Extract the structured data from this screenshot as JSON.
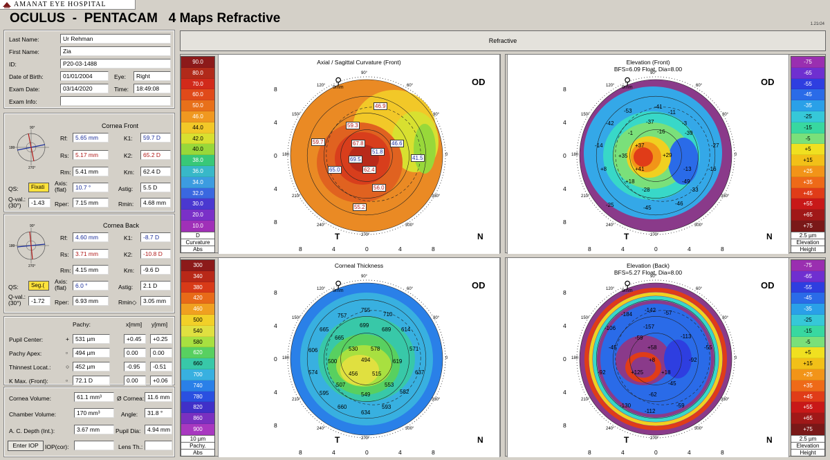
{
  "hospital": "AMANAT EYE HOSPITAL",
  "title": "OCULUS  -  PENTACAM   4 Maps Refractive",
  "version": "1.21r24",
  "header": "Refractive",
  "patient": {
    "last_name_label": "Last Name:",
    "last_name": "Ur Rehman",
    "first_name_label": "First Name:",
    "first_name": "Zia",
    "id_label": "ID:",
    "id": "P20-03-1488",
    "dob_label": "Date of Birth:",
    "dob": "01/01/2004",
    "eye_label": "Eye:",
    "eye": "Right",
    "exam_date_label": "Exam Date:",
    "exam_date": "03/14/2020",
    "time_label": "Time:",
    "time": "18:49:08",
    "exam_info_label": "Exam Info:",
    "exam_info": ""
  },
  "front": {
    "title": "Cornea Front",
    "rf_l": "Rf:",
    "rf": "5.65 mm",
    "k1_l": "K1:",
    "k1": "59.7 D",
    "rs_l": "Rs:",
    "rs": "5.17 mm",
    "k2_l": "K2:",
    "k2": "65.2 D",
    "rm_l": "Rm:",
    "rm": "5.41 mm",
    "km_l": "Km:",
    "km": "62.4 D",
    "qs_l": "QS:",
    "qs": "Fixati",
    "axis_l": "Axis:",
    "axis_l2": "(flat)",
    "axis": "10.7 °",
    "astig_l": "Astig:",
    "astig": "5.5 D",
    "qval_l": "Q-val.:",
    "qval_l2": "(30°)",
    "qval": "-1.43",
    "rper_l": "Rper:",
    "rper": "7.15 mm",
    "rmin_l": "Rmin:",
    "rmin": "4.68 mm"
  },
  "back": {
    "title": "Cornea Back",
    "rf_l": "Rf:",
    "rf": "4.60 mm",
    "k1_l": "K1:",
    "k1": "-8.7 D",
    "rs_l": "Rs:",
    "rs": "3.71 mm",
    "k2_l": "K2:",
    "k2": "-10.8 D",
    "rm_l": "Rm:",
    "rm": "4.15 mm",
    "km_l": "Km:",
    "km": "-9.6 D",
    "qs_l": "QS:",
    "qs": "Seg.(",
    "axis_l": "Axis:",
    "axis_l2": "(flat)",
    "axis": "6.0 °",
    "astig_l": "Astig:",
    "astig": "2.1 D",
    "qval_l": "Q-val.:",
    "qval_l2": "(30°)",
    "qval": "-1.72",
    "rper_l": "Rper:",
    "rper": "6.93 mm",
    "rmin_l": "Rmin◇",
    "rmin": "3.05 mm"
  },
  "pachy": {
    "col_pachy": "Pachy:",
    "col_x": "x[mm]",
    "col_y": "y[mm]",
    "rows": [
      {
        "label": "Pupil Center:",
        "sym": "+",
        "pachy": "531 µm",
        "x": "+0.45",
        "y": "+0.25"
      },
      {
        "label": "Pachy Apex:",
        "sym": "▫",
        "pachy": "494 µm",
        "x": "0.00",
        "y": "0.00"
      },
      {
        "label": "Thinnest Locat.:",
        "sym": "○",
        "pachy": "452 µm",
        "x": "-0.95",
        "y": "-0.51"
      },
      {
        "label": "K Max. (Front):",
        "sym": "▫",
        "pachy": "72.1 D",
        "x": "0.00",
        "y": "+0.06"
      }
    ]
  },
  "volumes": {
    "cv_l": "Cornea Volume:",
    "cv": "61.1 mm³",
    "cd_l": "Ø Cornea:",
    "cd": "11.6 mm",
    "chv_l": "Chamber Volume:",
    "chv": "170 mm³",
    "angle_l": "Angle:",
    "angle": "31.8 °",
    "acd_l": "A. C. Depth (Int.):",
    "acd": "3.67 mm",
    "pupil_l": "Pupil Dia:",
    "pupil": "4.94 mm",
    "iop_btn": "Enter IOP",
    "iop_l": "IOP(cor):",
    "iop": "",
    "lens_l": "Lens Th.:",
    "lens": ""
  },
  "maps": {
    "axial": {
      "title": "Axial / Sagittal Curvature (Front)",
      "scale_unit": "D",
      "scale_foot1": "Curvature",
      "scale_foot2": "Abs",
      "scale": [
        "90.0",
        "80.0",
        "70.0",
        "60.0",
        "50.0",
        "46.0",
        "44.0",
        "42.0",
        "40.0",
        "38.0",
        "36.0",
        "34.0",
        "32.0",
        "30.0",
        "20.0",
        "10.0"
      ],
      "colors": [
        "#8c1a1a",
        "#b12a1a",
        "#d12a1a",
        "#e04a1a",
        "#e8701a",
        "#f09820",
        "#f2c828",
        "#d8e030",
        "#98d83a",
        "#38c878",
        "#38b8c8",
        "#3c9ce0",
        "#3a68e0",
        "#4a38d0",
        "#7a30c8",
        "#a030b8"
      ]
    },
    "elev_front": {
      "title": "Elevation (Front)",
      "title2": "BFS=6.09 Float, Dia=8.00",
      "scale_unit": "2.5 µm",
      "scale_foot1": "Elevation",
      "scale_foot2": "Height",
      "scale": [
        "-75",
        "-65",
        "-55",
        "-45",
        "-35",
        "-25",
        "-15",
        "-5",
        "+5",
        "+15",
        "+25",
        "+35",
        "+45",
        "+55",
        "+65",
        "+75"
      ],
      "colors": [
        "#9a2fb0",
        "#6f2fd0",
        "#2e3ee0",
        "#2a6be8",
        "#2aa0e8",
        "#36c8d8",
        "#38d8a0",
        "#7ae07a",
        "#f0e020",
        "#f2c018",
        "#f29418",
        "#ee6a18",
        "#e03c18",
        "#c81818",
        "#a01818",
        "#7a1818"
      ]
    },
    "thickness": {
      "title": "Corneal Thickness",
      "scale_unit": "10 µm",
      "scale_foot1": "Pachy.",
      "scale_foot2": "Abs",
      "scale": [
        "300",
        "340",
        "380",
        "420",
        "460",
        "500",
        "540",
        "580",
        "620",
        "660",
        "700",
        "740",
        "780",
        "820",
        "860",
        "900"
      ],
      "colors": [
        "#8c1a1a",
        "#b82818",
        "#d83a18",
        "#e86a18",
        "#f0a020",
        "#f2d028",
        "#e0e040",
        "#a8e040",
        "#58d060",
        "#38c8a8",
        "#38b0e0",
        "#2a80e8",
        "#2a50e0",
        "#4030c8",
        "#7a30c0",
        "#a838c0"
      ]
    },
    "elev_back": {
      "title": "Elevation (Back)",
      "title2": "BFS=5.27 Float, Dia=8.00",
      "scale_unit": "2.5 µm",
      "scale_foot1": "Elevation",
      "scale_foot2": "Height",
      "scale": [
        "-75",
        "-65",
        "-55",
        "-45",
        "-35",
        "-25",
        "-15",
        "-5",
        "+5",
        "+15",
        "+25",
        "+35",
        "+45",
        "+55",
        "+65",
        "+75"
      ],
      "colors": [
        "#9a2fb0",
        "#6f2fd0",
        "#2e3ee0",
        "#2a6be8",
        "#2aa0e8",
        "#36c8d8",
        "#38d8a0",
        "#7ae07a",
        "#f0e020",
        "#f2c018",
        "#f29418",
        "#ee6a18",
        "#e03c18",
        "#c81818",
        "#a01818",
        "#7a1818"
      ]
    },
    "common": {
      "od": "OD",
      "t": "T",
      "n": "N",
      "mm": "9mm",
      "y_ticks": [
        "8",
        "4",
        "0",
        "4",
        "8"
      ],
      "x_ticks": [
        "8",
        "4",
        "0",
        "4",
        "8"
      ],
      "deg90": "90°",
      "deg270": "270°",
      "deg0": "0",
      "deg180": "180",
      "deg60": "60°",
      "deg30": "30°",
      "deg120": "120°",
      "deg150": "150°",
      "deg210": "210°",
      "deg240": "240°",
      "deg300": "300°",
      "deg330": "330°"
    }
  },
  "axial_labels": [
    "46.9",
    "59.3",
    "59.7",
    "67.8",
    "51.8",
    "46.6",
    "41.5",
    "69.5",
    "62.4",
    "65.0",
    "56.0",
    "55.2"
  ],
  "thick_labels": [
    "755",
    "710",
    "757",
    "699",
    "665",
    "689",
    "614",
    "665",
    "606",
    "530",
    "578",
    "571",
    "500",
    "494",
    "619",
    "574",
    "456",
    "515",
    "637",
    "507",
    "553",
    "595",
    "549",
    "582",
    "660",
    "593",
    "634"
  ],
  "ef_labels": [
    "-41",
    "-11",
    "-53",
    "-37",
    "-42",
    "-39",
    "-3",
    "-1",
    "-16",
    "-14",
    "+37",
    "+29",
    "-27",
    "+35",
    "+41",
    "-13",
    "+8",
    "-49",
    "-16",
    "+18",
    "-28",
    "-33",
    "-25",
    "-45",
    "-46"
  ],
  "eb_labels": [
    "-142",
    "-184",
    "-57",
    "-157",
    "-106",
    "-113",
    "-59",
    "-45",
    "+58",
    "-55",
    "-92",
    "+8",
    "+18",
    "+125",
    "-45",
    "-62",
    "-92",
    "-130",
    "-112",
    "-59"
  ]
}
